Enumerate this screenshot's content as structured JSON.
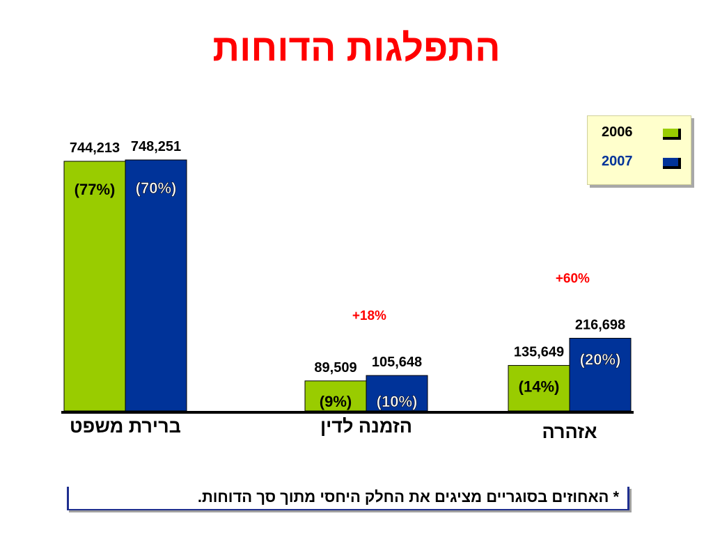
{
  "title": "התפלגות הדוחות",
  "footnote": "* האחוזים בסוגריים מציגים את החלק היחסי מתוך סך הדוחות.",
  "colors": {
    "s2006": "#99cc00",
    "s2007": "#003399",
    "growth": "#ff0000"
  },
  "chart_data": {
    "type": "bar",
    "categories": [
      "ברירת משפט",
      "הזמנה לדין",
      "אזהרה"
    ],
    "series": [
      {
        "name": "2006",
        "values": [
          744213,
          89509,
          135649
        ],
        "value_labels": [
          "744,213",
          "89,509",
          "135,649"
        ],
        "share_labels": [
          "(77%)",
          "(9%)",
          "(14%)"
        ]
      },
      {
        "name": "2007",
        "values": [
          748251,
          105648,
          216698
        ],
        "value_labels": [
          "748,251",
          "105,648",
          "216,698"
        ],
        "share_labels": [
          "(70%)",
          "(10%)",
          "(20%)"
        ]
      }
    ],
    "growth_labels": [
      "",
      "+18%",
      "+60%"
    ],
    "ylim": [
      0,
      748251
    ],
    "legend": {
      "position": "top-right",
      "entries": [
        "2006",
        "2007"
      ]
    },
    "grid": false
  }
}
